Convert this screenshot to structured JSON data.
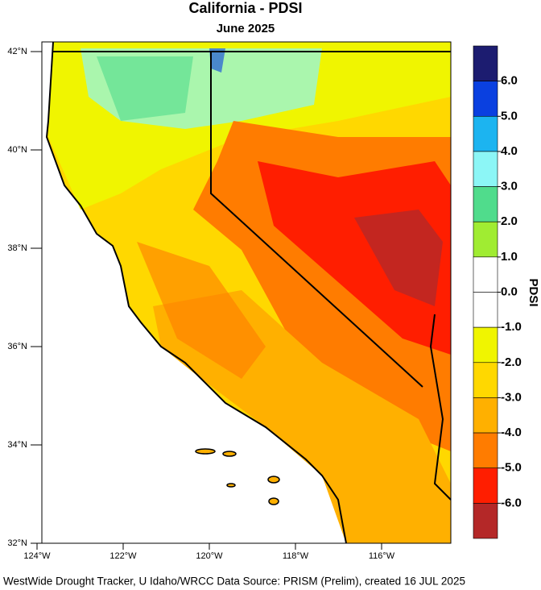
{
  "title": "California - PDSI",
  "subtitle": "June 2025",
  "lat_ticks": [
    {
      "value": 42,
      "label": "42°N"
    },
    {
      "value": 40,
      "label": "40°N"
    },
    {
      "value": 38,
      "label": "38°N"
    },
    {
      "value": 36,
      "label": "36°N"
    },
    {
      "value": 34,
      "label": "34°N"
    },
    {
      "value": 32,
      "label": "32°N"
    }
  ],
  "lon_ticks": [
    {
      "value": -124,
      "label": "124°W"
    },
    {
      "value": -122,
      "label": "122°W"
    },
    {
      "value": -120,
      "label": "120°W"
    },
    {
      "value": -118,
      "label": "118°W"
    },
    {
      "value": -116,
      "label": "116°W"
    }
  ],
  "colorbar": {
    "title": "PDSI",
    "ticks": [
      {
        "value": 6,
        "label": "6.0"
      },
      {
        "value": 5,
        "label": "5.0"
      },
      {
        "value": 4,
        "label": "4.0"
      },
      {
        "value": 3,
        "label": "3.0"
      },
      {
        "value": 2,
        "label": "2.0"
      },
      {
        "value": 1,
        "label": "1.0"
      },
      {
        "value": 0,
        "label": "0.0"
      },
      {
        "value": -1,
        "label": "-1.0"
      },
      {
        "value": -2,
        "label": "-2.0"
      },
      {
        "value": -3,
        "label": "-3.0"
      },
      {
        "value": -4,
        "label": "-4.0"
      },
      {
        "value": -5,
        "label": "-5.0"
      },
      {
        "value": -6,
        "label": "-6.0"
      }
    ],
    "colors": [
      "#1c1c70",
      "#0a40e0",
      "#1cb4f0",
      "#8cf6f6",
      "#50dc8c",
      "#a0ec32",
      "#ffffff",
      "#ffffff",
      "#f0f500",
      "#ffd800",
      "#ffb000",
      "#ff7c00",
      "#ff1e00",
      "#b42828"
    ]
  },
  "footer": "WestWide Drought Tracker, U Idaho/WRCC Data Source: PRISM (Prelim), created 16 JUL 2025"
}
